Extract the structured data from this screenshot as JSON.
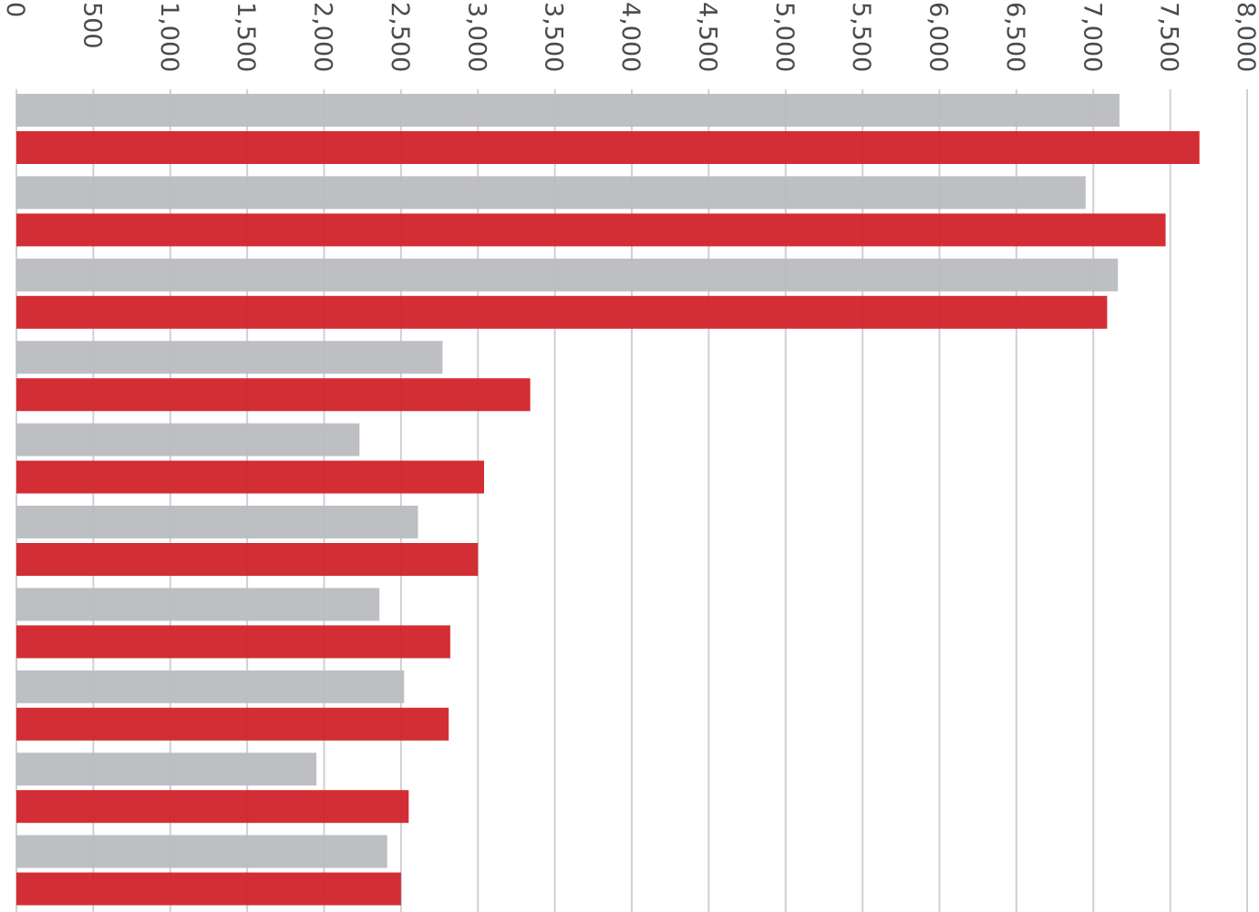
{
  "chart_data": {
    "type": "bar",
    "orientation": "horizontal",
    "title": "",
    "xlabel": "",
    "ylabel": "",
    "xlim": [
      0,
      8000
    ],
    "x_ticks": [
      0,
      500,
      1000,
      1500,
      2000,
      2500,
      3000,
      3500,
      4000,
      4500,
      5000,
      5500,
      6000,
      6500,
      7000,
      7500,
      8000
    ],
    "x_tick_labels": [
      "0",
      "500",
      "1,000",
      "1,500",
      "2,000",
      "2,500",
      "3,000",
      "3,500",
      "4,000",
      "4,500",
      "5,000",
      "5,500",
      "6,000",
      "6,500",
      "7,000",
      "7,500",
      "8,000"
    ],
    "tick_label_rotation": "90deg clockwise",
    "axis_position": "top",
    "grid": true,
    "legend": "none",
    "categories": [
      "",
      "",
      "",
      "",
      "",
      "",
      "",
      "",
      "",
      ""
    ],
    "series": [
      {
        "color": "#bbbcc0",
        "values": [
          7170,
          6950,
          7160,
          2770,
          2230,
          2610,
          2360,
          2520,
          1950,
          2410
        ]
      },
      {
        "color": "#d1232a",
        "values": [
          7690,
          7470,
          7090,
          3340,
          3040,
          3000,
          2820,
          2810,
          2550,
          2500
        ]
      }
    ],
    "grid_color": "#cfd0d4"
  }
}
